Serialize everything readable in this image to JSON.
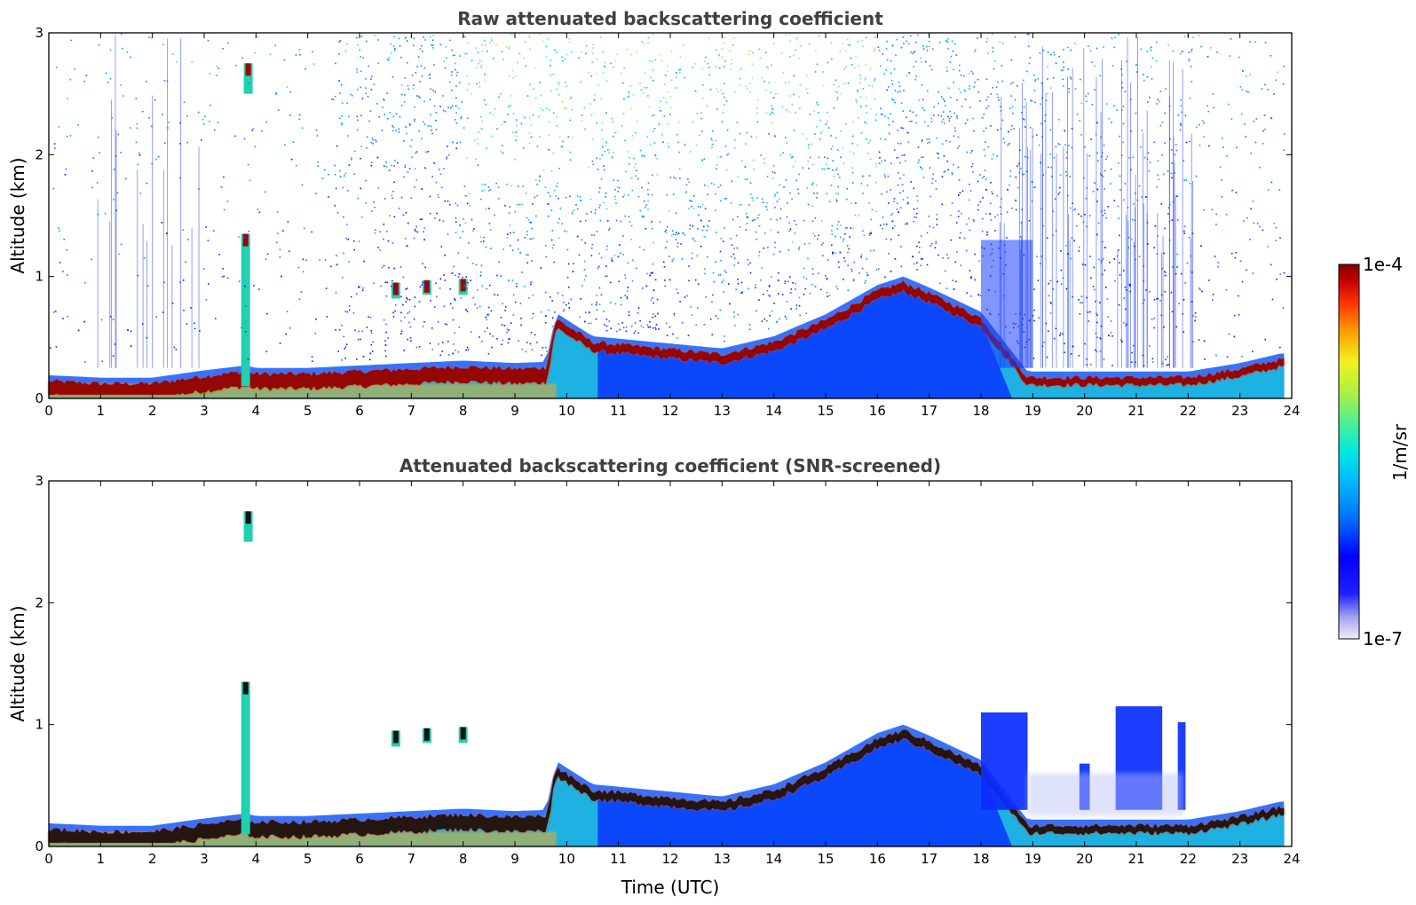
{
  "chart_data": [
    {
      "type": "heatmap",
      "title": "Raw attenuated backscattering coefficient",
      "xlabel": "",
      "ylabel": "Altitude (km)",
      "xlim": [
        0,
        24
      ],
      "ylim": [
        0,
        3
      ],
      "xticks": [
        "0",
        "1",
        "2",
        "3",
        "4",
        "5",
        "6",
        "7",
        "8",
        "9",
        "10",
        "11",
        "12",
        "13",
        "14",
        "15",
        "16",
        "17",
        "18",
        "19",
        "20",
        "21",
        "22",
        "23",
        "24"
      ],
      "yticks": [
        "0",
        "1",
        "2",
        "3"
      ],
      "layer_height_km": [
        [
          0,
          0.14
        ],
        [
          1,
          0.12
        ],
        [
          2,
          0.12
        ],
        [
          3,
          0.18
        ],
        [
          3.8,
          0.22
        ],
        [
          4,
          0.2
        ],
        [
          5,
          0.2
        ],
        [
          6,
          0.22
        ],
        [
          7,
          0.24
        ],
        [
          8,
          0.26
        ],
        [
          9,
          0.24
        ],
        [
          9.6,
          0.25
        ],
        [
          9.8,
          0.65
        ],
        [
          10.5,
          0.46
        ],
        [
          11,
          0.44
        ],
        [
          12,
          0.4
        ],
        [
          13,
          0.36
        ],
        [
          14,
          0.46
        ],
        [
          15,
          0.64
        ],
        [
          16,
          0.88
        ],
        [
          16.5,
          0.95
        ],
        [
          17,
          0.86
        ],
        [
          18,
          0.66
        ],
        [
          18.9,
          0.17
        ],
        [
          20,
          0.17
        ],
        [
          21,
          0.17
        ],
        [
          22,
          0.17
        ],
        [
          23,
          0.24
        ],
        [
          23.8,
          0.32
        ]
      ],
      "features": [
        {
          "x": 3.8,
          "alt_km": [
            0.1,
            1.35
          ]
        },
        {
          "x": 3.85,
          "alt_km": [
            2.5,
            2.75
          ]
        },
        {
          "x": 6.7,
          "alt_km": [
            0.82,
            0.95
          ]
        },
        {
          "x": 7.3,
          "alt_km": [
            0.85,
            0.97
          ]
        },
        {
          "x": 8.0,
          "alt_km": [
            0.85,
            0.98
          ]
        }
      ]
    },
    {
      "type": "heatmap",
      "title": "Attenuated backscattering coefficient (SNR-screened)",
      "xlabel": "Time (UTC)",
      "ylabel": "Altitude (km)",
      "xlim": [
        0,
        24
      ],
      "ylim": [
        0,
        3
      ],
      "xticks": [
        "0",
        "1",
        "2",
        "3",
        "4",
        "5",
        "6",
        "7",
        "8",
        "9",
        "10",
        "11",
        "12",
        "13",
        "14",
        "15",
        "16",
        "17",
        "18",
        "19",
        "20",
        "21",
        "22",
        "23",
        "24"
      ],
      "yticks": [
        "0",
        "1",
        "2",
        "3"
      ],
      "aerosol_blocks": [
        {
          "x_range": [
            18.0,
            18.9
          ],
          "alt_km": [
            0.3,
            1.1
          ]
        },
        {
          "x_range": [
            19.9,
            20.1
          ],
          "alt_km": [
            0.3,
            0.68
          ]
        },
        {
          "x_range": [
            20.6,
            21.5
          ],
          "alt_km": [
            0.3,
            1.15
          ]
        },
        {
          "x_range": [
            21.8,
            21.95
          ],
          "alt_km": [
            0.3,
            1.02
          ]
        }
      ]
    }
  ],
  "colorbar": {
    "label": "1/m/sr",
    "max_label": "1e-4",
    "min_label": "1e-7",
    "scale": "log",
    "colors": [
      "#e6e6f7",
      "#c8c8f2",
      "#9c9cf0",
      "#5050f5",
      "#0000ff",
      "#0060ff",
      "#00a8ff",
      "#00e8e0",
      "#40f0a0",
      "#a0f050",
      "#f0f020",
      "#ffb000",
      "#ff5000",
      "#e00000",
      "#8b0000"
    ]
  }
}
